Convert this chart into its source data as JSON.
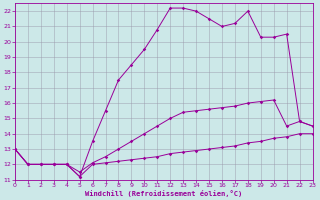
{
  "xlabel": "Windchill (Refroidissement éolien,°C)",
  "xlim": [
    0,
    23
  ],
  "ylim": [
    11,
    22.5
  ],
  "yticks": [
    11,
    12,
    13,
    14,
    15,
    16,
    17,
    18,
    19,
    20,
    21,
    22
  ],
  "xticks": [
    0,
    1,
    2,
    3,
    4,
    5,
    6,
    7,
    8,
    9,
    10,
    11,
    12,
    13,
    14,
    15,
    16,
    17,
    18,
    19,
    20,
    21,
    22,
    23
  ],
  "color": "#990099",
  "bg_color": "#cce8e8",
  "grid_color": "#9999aa",
  "line1_x": [
    0,
    1,
    2,
    3,
    4,
    5,
    6,
    7,
    8,
    9,
    10,
    11,
    12,
    13,
    14,
    15,
    16,
    17,
    18,
    19,
    20,
    21,
    22,
    23
  ],
  "line1_y": [
    13,
    12,
    12,
    12,
    12,
    11.2,
    12,
    12.1,
    12.2,
    12.3,
    12.4,
    12.5,
    12.7,
    12.8,
    12.9,
    13.0,
    13.1,
    13.2,
    13.4,
    13.5,
    13.7,
    13.8,
    14.0,
    14.0
  ],
  "line2_x": [
    0,
    1,
    2,
    3,
    4,
    5,
    6,
    7,
    8,
    9,
    10,
    11,
    12,
    13,
    14,
    15,
    16,
    17,
    18,
    19,
    20,
    21,
    22,
    23
  ],
  "line2_y": [
    13,
    12,
    12,
    12,
    12,
    11.5,
    12.1,
    12.5,
    13.0,
    13.5,
    14.0,
    14.5,
    15.0,
    15.4,
    15.5,
    15.6,
    15.7,
    15.8,
    16.0,
    16.1,
    16.2,
    14.5,
    14.8,
    14.5
  ],
  "line3_x": [
    0,
    1,
    2,
    3,
    4,
    5,
    6,
    7,
    8,
    9,
    10,
    11,
    12,
    13,
    14,
    15,
    16,
    17,
    18,
    19,
    20,
    21,
    22,
    23
  ],
  "line3_y": [
    13,
    12,
    12,
    12,
    12,
    11.2,
    13.5,
    15.5,
    17.5,
    18.5,
    19.5,
    20.8,
    22.2,
    22.2,
    22.0,
    21.5,
    21.0,
    21.2,
    22.0,
    20.3,
    20.3,
    20.5,
    14.8,
    14.5
  ]
}
